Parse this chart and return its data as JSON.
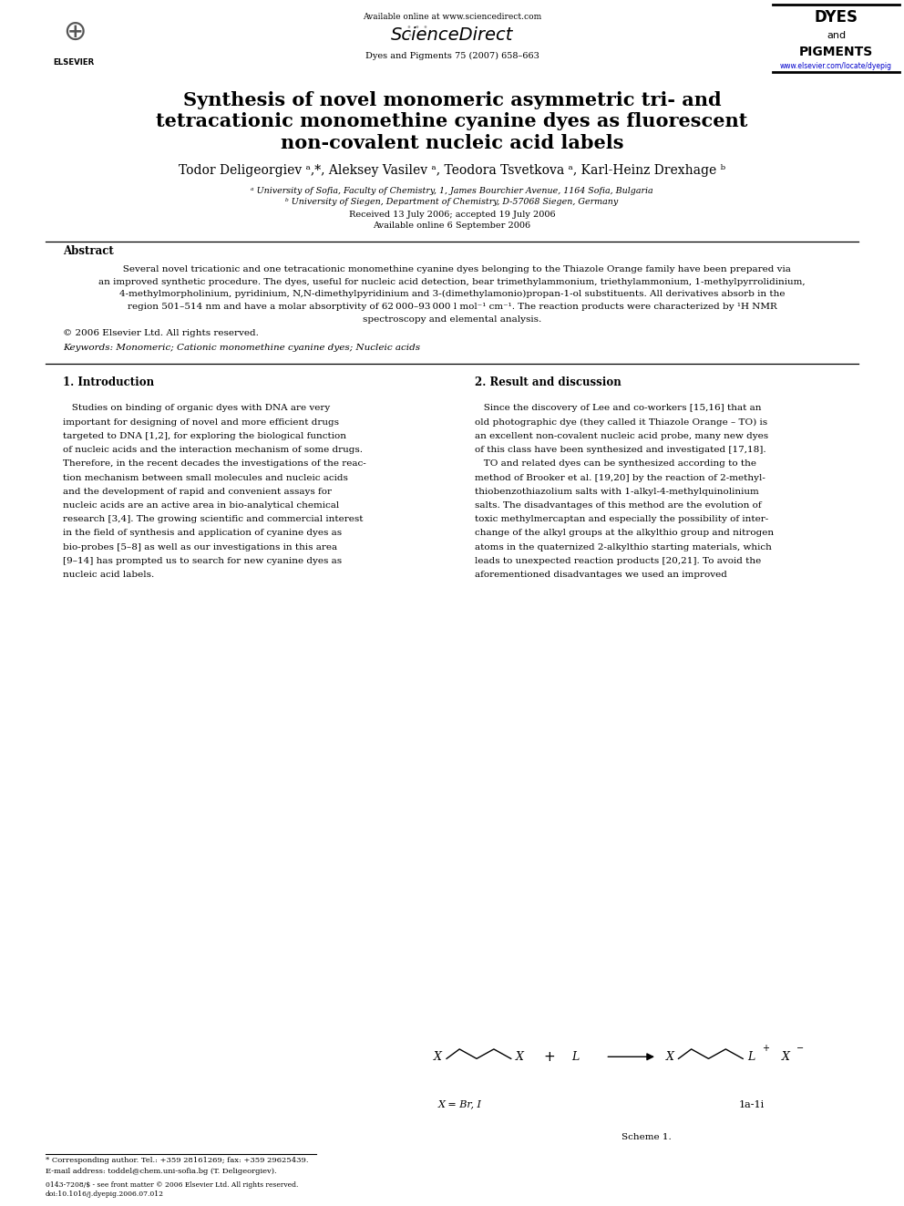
{
  "title_line1": "Synthesis of novel monomeric asymmetric tri- and",
  "title_line2": "tetracationic monomethine cyanine dyes as fluorescent",
  "title_line3": "non-covalent nucleic acid labels",
  "authors": "Todor Deligeorgiev ᵃ,*, Aleksey Vasilev ᵃ, Teodora Tsvetkova ᵃ, Karl-Heinz Drexhage ᵇ",
  "affil_a": "ᵃ University of Sofia, Faculty of Chemistry, 1, James Bourchier Avenue, 1164 Sofia, Bulgaria",
  "affil_b": "ᵇ University of Siegen, Department of Chemistry, D-57068 Siegen, Germany",
  "received": "Received 13 July 2006; accepted 19 July 2006",
  "available": "Available online 6 September 2006",
  "journal_header": "Available online at www.sciencedirect.com",
  "journal_name": "Dyes and Pigments 75 (2007) 658–663",
  "journal_url": "www.elsevier.com/locate/dyepig",
  "abstract_title": "Abstract",
  "copyright": "© 2006 Elsevier Ltd. All rights reserved.",
  "keywords_label": "Keywords:",
  "keywords": "Monomeric; Cationic monomethine cyanine dyes; Nucleic acids",
  "section1_title": "1. Introduction",
  "section2_title": "2. Result and discussion",
  "footnote_star": "* Corresponding author. Tel.: +359 28161269; fax: +359 29625439.",
  "footnote_email": "E-mail address: toddel@chem.uni-sofia.bg (T. Deligeorgiev).",
  "footer_issn": "0143-7208/$ - see front matter © 2006 Elsevier Ltd. All rights reserved.",
  "footer_doi": "doi:10.1016/j.dyepig.2006.07.012",
  "scheme1_label": "Scheme 1.",
  "bg_color": "#ffffff",
  "text_color": "#000000",
  "link_color": "#0000cc",
  "title_fontsize": 15,
  "body_fontsize": 7.5,
  "small_fontsize": 6.5,
  "abstract_lines": [
    "   Several novel tricationic and one tetracationic monomethine cyanine dyes belonging to the Thiazole Orange family have been prepared via",
    "an improved synthetic procedure. The dyes, useful for nucleic acid detection, bear trimethylammonium, triethylammonium, 1-methylpyrrolidinium,",
    "4-methylmorpholinium, pyridinium, N,N-dimethylpyridinium and 3-(dimethylamonio)propan-1-ol substituents. All derivatives absorb in the",
    "region 501–514 nm and have a molar absorptivity of 62 000–93 000 l mol⁻¹ cm⁻¹. The reaction products were characterized by ¹H NMR",
    "spectroscopy and elemental analysis."
  ],
  "s1_lines": [
    "   Studies on binding of organic dyes with DNA are very",
    "important for designing of novel and more efficient drugs",
    "targeted to DNA [1,2], for exploring the biological function",
    "of nucleic acids and the interaction mechanism of some drugs.",
    "Therefore, in the recent decades the investigations of the reac-",
    "tion mechanism between small molecules and nucleic acids",
    "and the development of rapid and convenient assays for",
    "nucleic acids are an active area in bio-analytical chemical",
    "research [3,4]. The growing scientific and commercial interest",
    "in the field of synthesis and application of cyanine dyes as",
    "bio-probes [5–8] as well as our investigations in this area",
    "[9–14] has prompted us to search for new cyanine dyes as",
    "nucleic acid labels."
  ],
  "s2_lines": [
    "   Since the discovery of Lee and co-workers [15,16] that an",
    "old photographic dye (they called it Thiazole Orange – TO) is",
    "an excellent non-covalent nucleic acid probe, many new dyes",
    "of this class have been synthesized and investigated [17,18].",
    "   TO and related dyes can be synthesized according to the",
    "method of Brooker et al. [19,20] by the reaction of 2-methyl-",
    "thiobenzothiazolium salts with 1-alkyl-4-methylquinolinium",
    "salts. The disadvantages of this method are the evolution of",
    "toxic methylmercaptan and especially the possibility of inter-",
    "change of the alkyl groups at the alkylthio group and nitrogen",
    "atoms in the quaternized 2-alkylthio starting materials, which",
    "leads to unexpected reaction products [20,21]. To avoid the",
    "aforementioned disadvantages we used an improved"
  ]
}
